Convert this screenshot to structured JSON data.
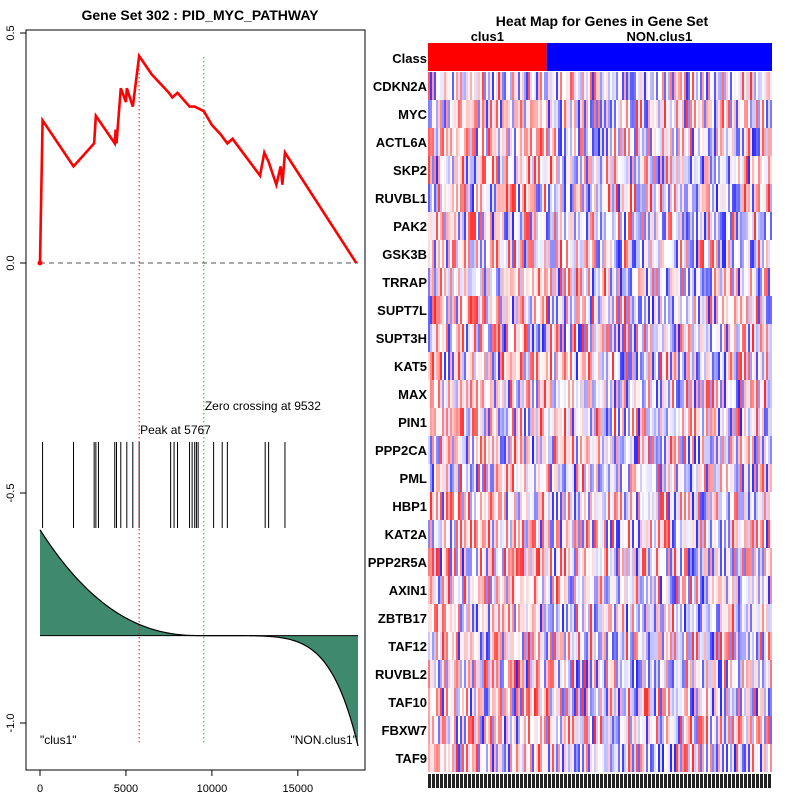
{
  "chart_data": [
    {
      "type": "line",
      "title": "Gene Set  302 : PID_MYC_PATHWAY",
      "xlim": [
        0,
        18500
      ],
      "ylim": [
        -1.05,
        0.5
      ],
      "x_ticks": [
        0,
        5000,
        10000,
        15000
      ],
      "x_tick_labels": [
        "0",
        "5000",
        "10000",
        "15000"
      ],
      "y_ticks": [
        0.5,
        0.0,
        -0.5,
        -1.0
      ],
      "y_tick_labels": [
        "0.5",
        "0.0",
        "-0.5",
        "-1.0"
      ],
      "colors": {
        "running_es": "#ff0000",
        "baseline": "#555555",
        "peak_line": "#ff0000",
        "zero_line": "#00bb00",
        "metric_fill": "#3f8a6f"
      },
      "running_es": {
        "name": "Enrichment score",
        "x": [
          0,
          150,
          1950,
          3150,
          3250,
          4350,
          4400,
          4450,
          4700,
          5000,
          5050,
          5400,
          5767,
          6500,
          7500,
          7700,
          8000,
          8700,
          9000,
          9532,
          10000,
          10500,
          10900,
          11200,
          12000,
          12800,
          13050,
          13300,
          13750,
          14000,
          14100,
          14250,
          18400
        ],
        "y": [
          0.0,
          0.31,
          0.21,
          0.26,
          0.32,
          0.26,
          0.29,
          0.26,
          0.38,
          0.35,
          0.38,
          0.34,
          0.45,
          0.41,
          0.37,
          0.36,
          0.37,
          0.34,
          0.34,
          0.33,
          0.3,
          0.28,
          0.26,
          0.27,
          0.23,
          0.19,
          0.24,
          0.22,
          0.17,
          0.21,
          0.17,
          0.24,
          0.0
        ]
      },
      "hits": [
        150,
        1950,
        3150,
        3250,
        3400,
        4350,
        4450,
        4700,
        5050,
        5400,
        5767,
        7600,
        7800,
        8000,
        8700,
        8850,
        9000,
        9100,
        9200,
        10100,
        10600,
        10900,
        13100,
        13300,
        14250
      ],
      "peak": {
        "x": 5767,
        "label": "Peak at 5767"
      },
      "zero_crossing": {
        "x": 9532,
        "label": "Zero crossing at 9532"
      },
      "class_labels": [
        "\"clus1\"",
        "\"NON.clus1\""
      ],
      "ranked_metric": {
        "start": -0.58,
        "end": -1.05,
        "baseline": -0.81
      }
    },
    {
      "type": "heatmap",
      "title": "Heat Map for Genes in Gene Set",
      "class_row_label": "Class",
      "classes": [
        {
          "name": "clus1",
          "color": "#ff0000",
          "fraction": 0.345
        },
        {
          "name": "NON.clus1",
          "color": "#0000ff",
          "fraction": 0.655
        }
      ],
      "genes": [
        "CDKN2A",
        "MYC",
        "ACTL6A",
        "SKP2",
        "RUVBL1",
        "PAK2",
        "GSK3B",
        "TRRAP",
        "SUPT7L",
        "SUPT3H",
        "KAT5",
        "MAX",
        "PIN1",
        "PPP2CA",
        "PML",
        "HBP1",
        "KAT2A",
        "PPP2R5A",
        "AXIN1",
        "ZBTB17",
        "TAF12",
        "RUVBL2",
        "TAF10",
        "FBXW7",
        "TAF9"
      ]
    }
  ]
}
